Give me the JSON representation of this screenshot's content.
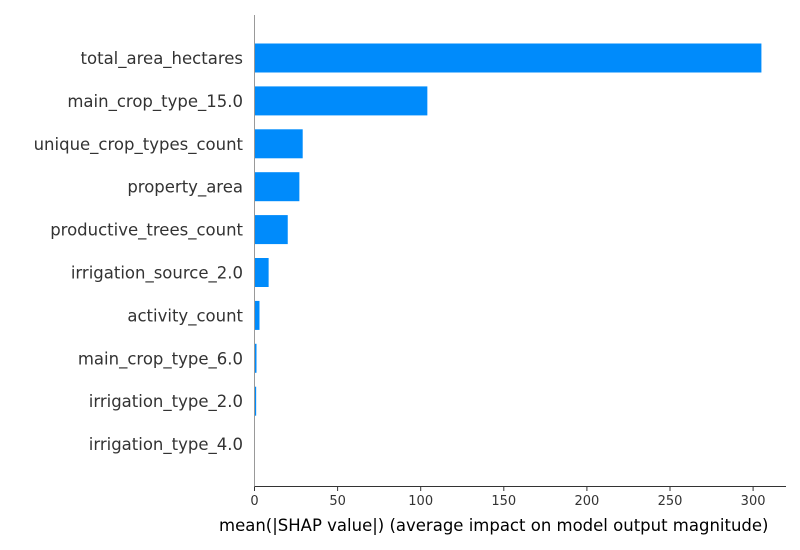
{
  "chart_data": {
    "type": "bar",
    "orientation": "horizontal",
    "title": "",
    "xlabel": "mean(|SHAP value|) (average impact on model output magnitude)",
    "ylabel": "",
    "xlim": [
      0,
      320
    ],
    "xticks": [
      0,
      50,
      100,
      150,
      200,
      250,
      300
    ],
    "grid": false,
    "bar_color": "#008bfb",
    "categories": [
      "total_area_hectares",
      "main_crop_type_15.0",
      "unique_crop_types_count",
      "property_area",
      "productive_trees_count",
      "irrigation_source_2.0",
      "activity_count",
      "main_crop_type_6.0",
      "irrigation_type_2.0",
      "irrigation_type_4.0"
    ],
    "values": [
      305,
      104,
      29,
      27,
      20,
      8.5,
      3,
      1.2,
      1.0,
      0
    ]
  }
}
